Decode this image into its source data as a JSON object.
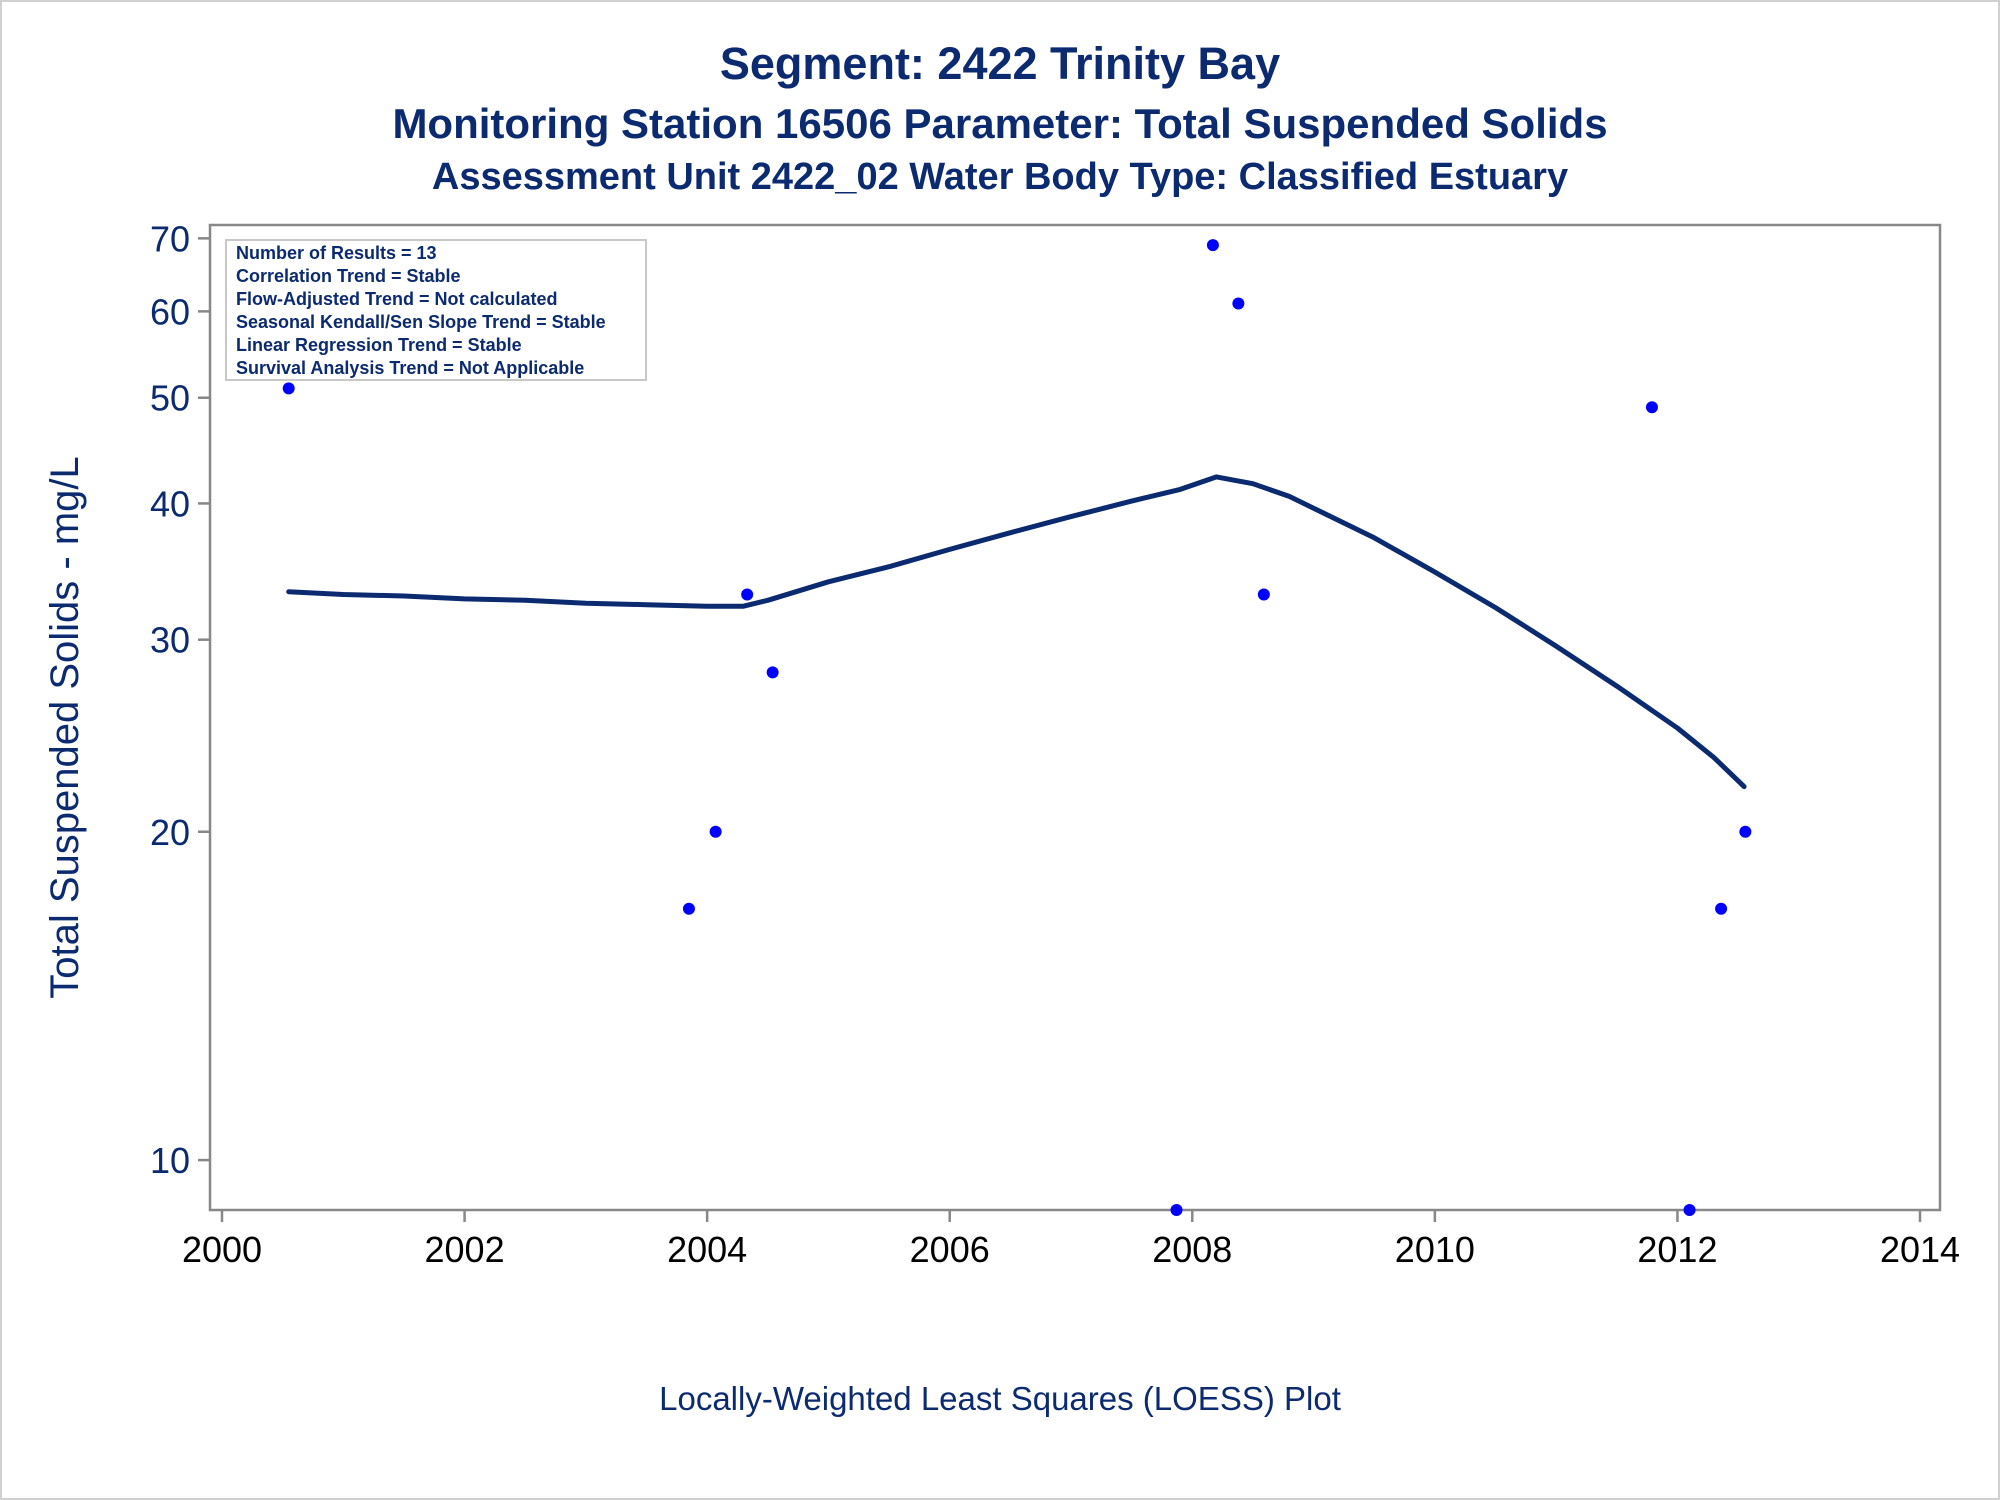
{
  "titles": {
    "line1": "Segment: 2422  Trinity Bay",
    "line2": "Monitoring Station 16506 Parameter: Total Suspended Solids",
    "line3": "Assessment Unit 2422_02   Water Body Type: Classified Estuary"
  },
  "footnote": "Locally-Weighted Least Squares (LOESS) Plot",
  "legend_box": [
    "Number of Results = 13",
    "Correlation Trend = Stable",
    "Flow-Adjusted Trend = Not calculated",
    "Seasonal Kendall/Sen Slope Trend = Stable",
    "Linear Regression Trend = Stable",
    "Survival Analysis Trend = Not Applicable"
  ],
  "colors": {
    "text": "#0b2a6f",
    "points": "#0000ff",
    "loess": "#0b2a6f",
    "axis": "#888888"
  },
  "chart_data": {
    "type": "scatter",
    "xlabel": "",
    "ylabel": "Total Suspended Solids - mg/L",
    "y_scale": "log",
    "xlim": [
      2000,
      2014
    ],
    "ylim": [
      9,
      72
    ],
    "x_ticks": [
      2000,
      2002,
      2004,
      2006,
      2008,
      2010,
      2012,
      2014
    ],
    "y_ticks": [
      10,
      20,
      30,
      40,
      50,
      60,
      70
    ],
    "grid": false,
    "legend_position": "top-left",
    "series": [
      {
        "type": "scatter",
        "points": [
          {
            "x": 2000.55,
            "y": 51
          },
          {
            "x": 2003.85,
            "y": 17
          },
          {
            "x": 2004.07,
            "y": 20
          },
          {
            "x": 2004.33,
            "y": 33
          },
          {
            "x": 2004.54,
            "y": 28
          },
          {
            "x": 2007.87,
            "y": 9
          },
          {
            "x": 2008.17,
            "y": 69
          },
          {
            "x": 2008.38,
            "y": 61
          },
          {
            "x": 2008.59,
            "y": 33
          },
          {
            "x": 2011.79,
            "y": 49
          },
          {
            "x": 2012.1,
            "y": 9
          },
          {
            "x": 2012.36,
            "y": 17
          },
          {
            "x": 2012.56,
            "y": 20
          }
        ]
      },
      {
        "type": "line",
        "points": [
          {
            "x": 2000.55,
            "y": 33.2
          },
          {
            "x": 2001.0,
            "y": 33.0
          },
          {
            "x": 2001.5,
            "y": 32.9
          },
          {
            "x": 2002.0,
            "y": 32.7
          },
          {
            "x": 2002.5,
            "y": 32.6
          },
          {
            "x": 2003.0,
            "y": 32.4
          },
          {
            "x": 2003.5,
            "y": 32.3
          },
          {
            "x": 2004.0,
            "y": 32.2
          },
          {
            "x": 2004.3,
            "y": 32.2
          },
          {
            "x": 2004.5,
            "y": 32.6
          },
          {
            "x": 2005.0,
            "y": 33.9
          },
          {
            "x": 2005.5,
            "y": 35.0
          },
          {
            "x": 2006.0,
            "y": 36.3
          },
          {
            "x": 2006.5,
            "y": 37.6
          },
          {
            "x": 2007.0,
            "y": 38.9
          },
          {
            "x": 2007.5,
            "y": 40.2
          },
          {
            "x": 2007.9,
            "y": 41.2
          },
          {
            "x": 2008.2,
            "y": 42.3
          },
          {
            "x": 2008.5,
            "y": 41.7
          },
          {
            "x": 2008.8,
            "y": 40.6
          },
          {
            "x": 2009.0,
            "y": 39.6
          },
          {
            "x": 2009.5,
            "y": 37.2
          },
          {
            "x": 2010.0,
            "y": 34.6
          },
          {
            "x": 2010.5,
            "y": 32.1
          },
          {
            "x": 2011.0,
            "y": 29.6
          },
          {
            "x": 2011.5,
            "y": 27.2
          },
          {
            "x": 2012.0,
            "y": 24.9
          },
          {
            "x": 2012.3,
            "y": 23.4
          },
          {
            "x": 2012.55,
            "y": 22.0
          }
        ]
      }
    ]
  }
}
